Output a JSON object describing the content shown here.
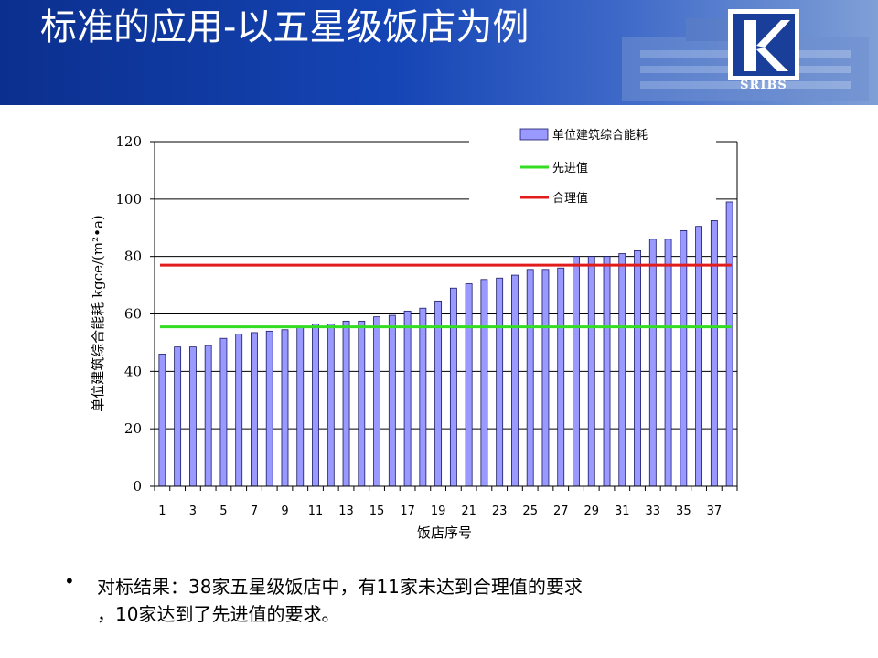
{
  "slide": {
    "title": "标准的应用-以五星级饭店为例",
    "logo_text": "SRIBS",
    "bullet": [
      "对标结果：38家五星级饭店中，有11家未达到合理值的要求",
      "，10家达到了先进值的要求。"
    ]
  },
  "colors": {
    "bar": "#9999ff",
    "advanced_line": "#33dd22",
    "reasonable_line": "#e21b1b",
    "header_blue": "#1545b5"
  },
  "chart_data": {
    "type": "bar",
    "xlabel": "饭店序号",
    "ylabel": "单位建筑综合能耗 kgce/(m²•a)",
    "ylim": [
      0,
      120
    ],
    "yticks": [
      0,
      20,
      40,
      60,
      80,
      100,
      120
    ],
    "xticks": [
      "1",
      "3",
      "5",
      "7",
      "9",
      "11",
      "13",
      "15",
      "17",
      "19",
      "21",
      "23",
      "25",
      "27",
      "29",
      "31",
      "33",
      "35",
      "37"
    ],
    "grid": true,
    "legend_placement": "top-right",
    "categories": [
      "1",
      "2",
      "3",
      "4",
      "5",
      "6",
      "7",
      "8",
      "9",
      "10",
      "11",
      "12",
      "13",
      "14",
      "15",
      "16",
      "17",
      "18",
      "19",
      "20",
      "21",
      "22",
      "23",
      "24",
      "25",
      "26",
      "27",
      "28",
      "29",
      "30",
      "31",
      "32",
      "33",
      "34",
      "35",
      "36",
      "37",
      "38"
    ],
    "series": [
      {
        "name": "单位建筑综合能耗",
        "type": "bar",
        "values": [
          46,
          48.5,
          48.5,
          49,
          51.5,
          53,
          53.5,
          54,
          54.5,
          55.5,
          56.5,
          56.5,
          57.5,
          57.5,
          59,
          59.5,
          61,
          62,
          64.5,
          69,
          70.5,
          72,
          72.5,
          73.5,
          75.5,
          75.5,
          76,
          80,
          80,
          80,
          81,
          82,
          86,
          86,
          89,
          90.5,
          92.5,
          99
        ]
      },
      {
        "name": "先进值",
        "type": "line",
        "value": 55.5
      },
      {
        "name": "合理值",
        "type": "line",
        "value": 77
      }
    ]
  }
}
